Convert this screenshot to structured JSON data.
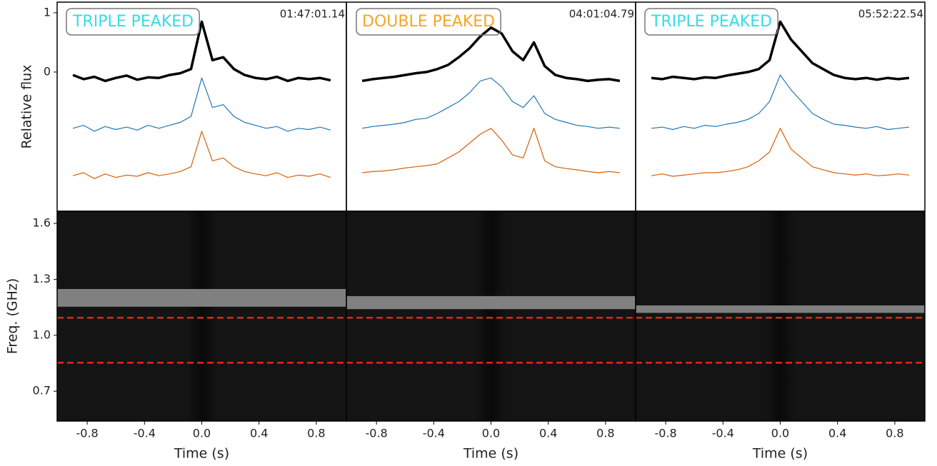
{
  "chart_data": [
    {
      "type": "line",
      "ylabel": "Relative flux",
      "label": "TRIPLE PEAKED",
      "label_color": "#33dde6",
      "timestamp": "01:47:01.14",
      "xlim": [
        -1.01,
        1.01
      ],
      "ylim": [
        -2.35,
        1.18
      ],
      "yticks": [
        1,
        0
      ],
      "x": [
        -0.9,
        -0.825,
        -0.75,
        -0.675,
        -0.6,
        -0.525,
        -0.45,
        -0.375,
        -0.3,
        -0.225,
        -0.15,
        -0.075,
        0,
        0.075,
        0.15,
        0.225,
        0.3,
        0.375,
        0.45,
        0.525,
        0.6,
        0.675,
        0.75,
        0.825,
        0.9
      ],
      "series": [
        {
          "color": "#000000",
          "values": [
            -0.05,
            -0.12,
            -0.08,
            -0.15,
            -0.1,
            -0.06,
            -0.13,
            -0.09,
            -0.1,
            -0.05,
            -0.02,
            0.05,
            0.85,
            0.2,
            0.25,
            0.05,
            -0.05,
            -0.1,
            -0.12,
            -0.08,
            -0.15,
            -0.1,
            -0.12,
            -0.1,
            -0.14
          ]
        },
        {
          "color": "#1f77b4",
          "values": [
            -0.95,
            -0.9,
            -1.0,
            -0.92,
            -0.97,
            -0.93,
            -0.98,
            -0.9,
            -0.95,
            -0.9,
            -0.85,
            -0.75,
            -0.1,
            -0.6,
            -0.55,
            -0.75,
            -0.85,
            -0.9,
            -0.95,
            -0.92,
            -1.0,
            -0.95,
            -0.97,
            -0.93,
            -0.98
          ]
        },
        {
          "color": "#d8600b",
          "values": [
            -1.75,
            -1.7,
            -1.8,
            -1.72,
            -1.78,
            -1.74,
            -1.76,
            -1.7,
            -1.75,
            -1.72,
            -1.68,
            -1.6,
            -1.0,
            -1.5,
            -1.45,
            -1.6,
            -1.68,
            -1.72,
            -1.75,
            -1.7,
            -1.78,
            -1.74,
            -1.76,
            -1.72,
            -1.78
          ]
        }
      ]
    },
    {
      "type": "line",
      "label": "DOUBLE PEAKED",
      "label_color": "#f5a623",
      "timestamp": "04:01:04.79",
      "xlim": [
        -1.01,
        1.01
      ],
      "ylim": [
        -2.35,
        1.18
      ],
      "x": [
        -0.9,
        -0.825,
        -0.75,
        -0.675,
        -0.6,
        -0.525,
        -0.45,
        -0.375,
        -0.3,
        -0.225,
        -0.15,
        -0.075,
        0,
        0.075,
        0.15,
        0.225,
        0.3,
        0.375,
        0.45,
        0.525,
        0.6,
        0.675,
        0.75,
        0.825,
        0.9
      ],
      "series": [
        {
          "color": "#000000",
          "values": [
            -0.15,
            -0.12,
            -0.1,
            -0.08,
            -0.05,
            -0.02,
            0.0,
            0.05,
            0.12,
            0.25,
            0.4,
            0.6,
            0.75,
            0.65,
            0.35,
            0.2,
            0.5,
            0.1,
            -0.05,
            -0.1,
            -0.12,
            -0.15,
            -0.13,
            -0.12,
            -0.15
          ]
        },
        {
          "color": "#1f77b4",
          "values": [
            -0.95,
            -0.92,
            -0.9,
            -0.88,
            -0.85,
            -0.8,
            -0.78,
            -0.7,
            -0.6,
            -0.5,
            -0.35,
            -0.15,
            -0.1,
            -0.25,
            -0.5,
            -0.6,
            -0.4,
            -0.7,
            -0.8,
            -0.85,
            -0.9,
            -0.92,
            -0.95,
            -0.93,
            -0.95
          ]
        },
        {
          "color": "#d8600b",
          "values": [
            -1.7,
            -1.68,
            -1.67,
            -1.65,
            -1.62,
            -1.6,
            -1.58,
            -1.55,
            -1.45,
            -1.35,
            -1.2,
            -1.05,
            -0.95,
            -1.15,
            -1.4,
            -1.45,
            -0.95,
            -1.5,
            -1.6,
            -1.63,
            -1.65,
            -1.68,
            -1.7,
            -1.68,
            -1.7
          ]
        }
      ]
    },
    {
      "type": "line",
      "label": "TRIPLE PEAKED",
      "label_color": "#33dde6",
      "timestamp": "05:52:22.54",
      "xlim": [
        -1.01,
        1.01
      ],
      "ylim": [
        -2.35,
        1.18
      ],
      "x": [
        -0.9,
        -0.825,
        -0.75,
        -0.675,
        -0.6,
        -0.525,
        -0.45,
        -0.375,
        -0.3,
        -0.225,
        -0.15,
        -0.075,
        0,
        0.075,
        0.15,
        0.225,
        0.3,
        0.375,
        0.45,
        0.525,
        0.6,
        0.675,
        0.75,
        0.825,
        0.9
      ],
      "series": [
        {
          "color": "#000000",
          "values": [
            -0.1,
            -0.12,
            -0.08,
            -0.1,
            -0.12,
            -0.09,
            -0.1,
            -0.06,
            -0.03,
            0.0,
            0.05,
            0.2,
            0.85,
            0.55,
            0.35,
            0.15,
            0.05,
            -0.05,
            -0.1,
            -0.12,
            -0.1,
            -0.13,
            -0.1,
            -0.12,
            -0.1
          ]
        },
        {
          "color": "#1f77b4",
          "values": [
            -0.95,
            -0.93,
            -0.97,
            -0.92,
            -0.95,
            -0.9,
            -0.92,
            -0.88,
            -0.85,
            -0.8,
            -0.7,
            -0.5,
            -0.05,
            -0.3,
            -0.5,
            -0.7,
            -0.8,
            -0.88,
            -0.9,
            -0.93,
            -0.95,
            -0.92,
            -0.97,
            -0.95,
            -0.93
          ]
        },
        {
          "color": "#d8600b",
          "values": [
            -1.75,
            -1.72,
            -1.76,
            -1.74,
            -1.72,
            -1.7,
            -1.7,
            -1.68,
            -1.65,
            -1.6,
            -1.5,
            -1.35,
            -0.95,
            -1.3,
            -1.45,
            -1.6,
            -1.65,
            -1.7,
            -1.72,
            -1.74,
            -1.72,
            -1.75,
            -1.74,
            -1.72,
            -1.74
          ]
        }
      ]
    },
    {
      "type": "spectrogram",
      "ylabel": "Freq. (GHz)",
      "xlabel": "Time (s)",
      "xlim": [
        -1.01,
        1.01
      ],
      "ylim": [
        0.54,
        1.665
      ],
      "xticks": [
        -0.8,
        -0.4,
        {
          "value": 0,
          "label": "0.0"
        },
        0.4,
        0.8
      ],
      "yticks": [
        1.6,
        1.3,
        {
          "value": 1,
          "label": "1.0"
        },
        0.7
      ],
      "masked_band": [
        1.153,
        1.248
      ],
      "hlines": [
        1.094,
        0.853
      ],
      "hline_color": "#e8241c"
    },
    {
      "type": "spectrogram",
      "xlabel": "Time (s)",
      "xlim": [
        -1.01,
        1.01
      ],
      "ylim": [
        0.54,
        1.665
      ],
      "xticks": [
        -0.8,
        -0.4,
        {
          "value": 0,
          "label": "0.0"
        },
        0.4,
        0.8
      ],
      "masked_band": [
        1.14,
        1.21
      ],
      "hlines": [
        1.094,
        0.853
      ],
      "hline_color": "#e8241c"
    },
    {
      "type": "spectrogram",
      "xlabel": "Time (s)",
      "xlim": [
        -1.01,
        1.01
      ],
      "ylim": [
        0.54,
        1.665
      ],
      "xticks": [
        -0.8,
        -0.4,
        {
          "value": 0,
          "label": "0.0"
        },
        0.4,
        0.8
      ],
      "masked_band": [
        1.12,
        1.16
      ],
      "hlines": [
        1.094,
        0.853
      ],
      "hline_color": "#e8241c"
    }
  ]
}
